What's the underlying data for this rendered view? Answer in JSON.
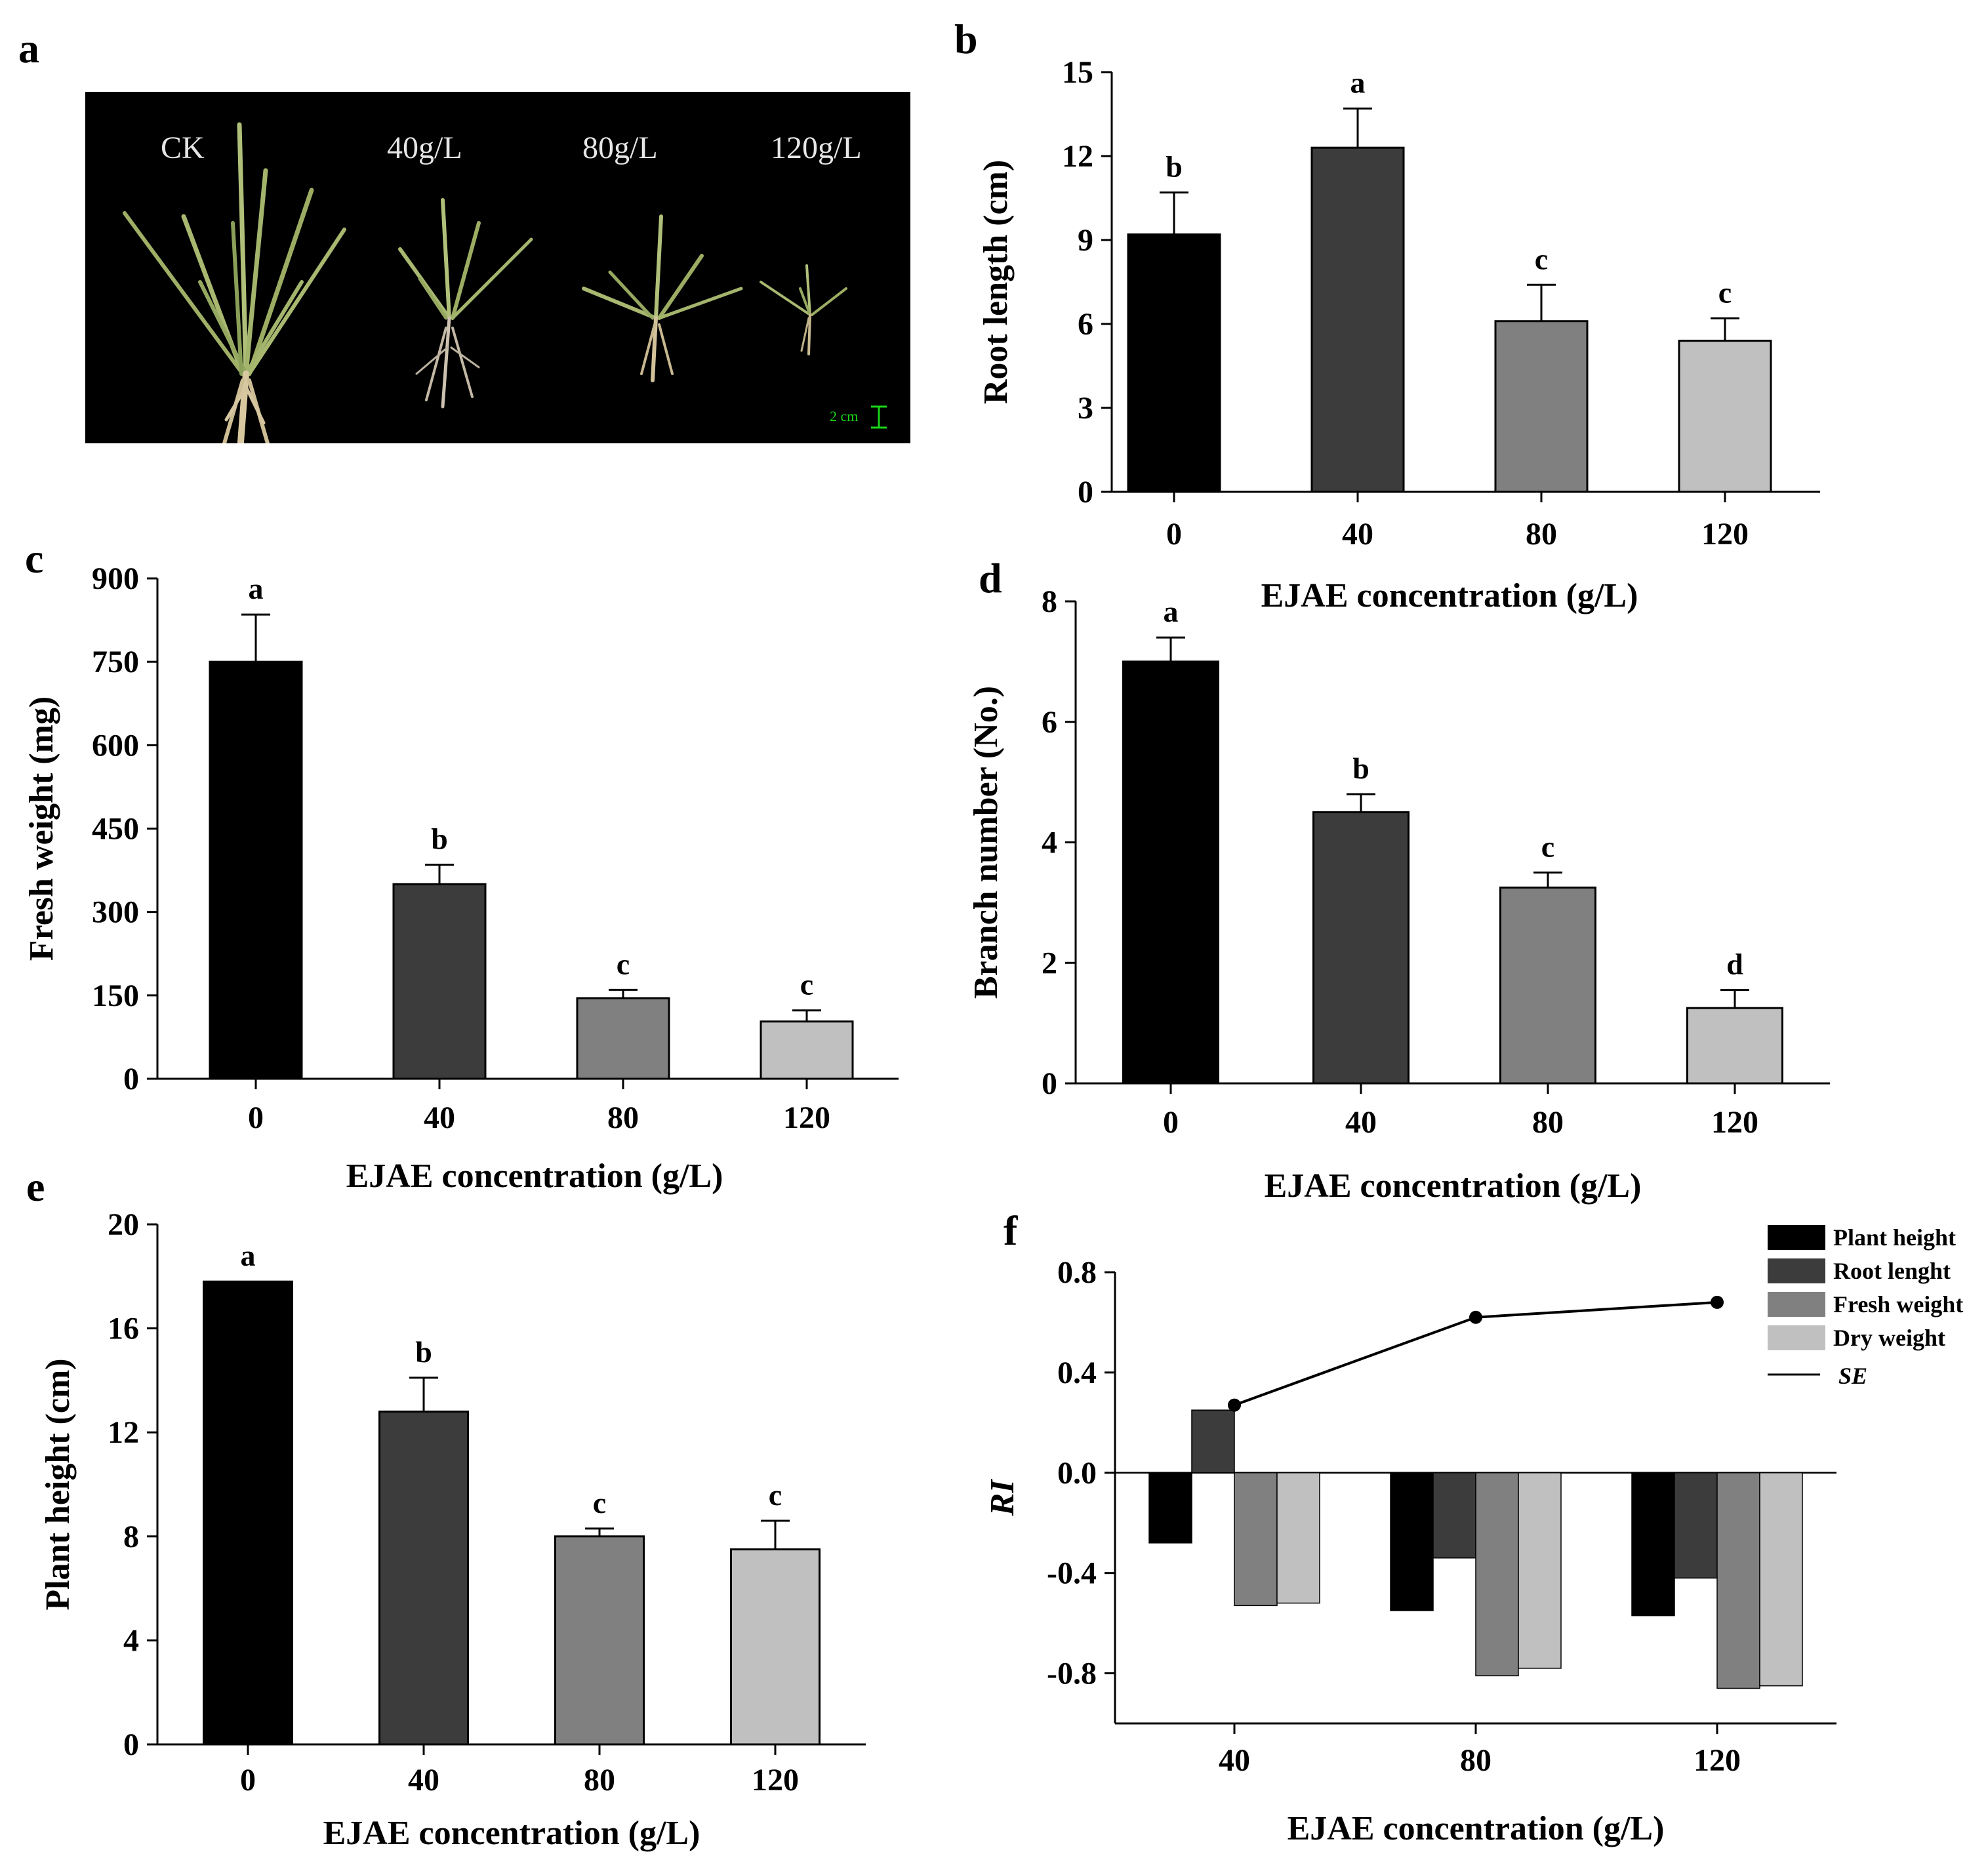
{
  "panels": {
    "a": "a",
    "b": "b",
    "c": "c",
    "d": "d",
    "e": "e",
    "f": "f"
  },
  "photo": {
    "labels": [
      "CK",
      "40g/L",
      "80g/L",
      "120g/L"
    ],
    "scale_label": "2 cm"
  },
  "colors": {
    "c0": "#000000",
    "c40": "#3c3c3c",
    "c80": "#808080",
    "c120": "#c0c0c0",
    "line": "#000000"
  },
  "chart_data": [
    {
      "id": "b",
      "type": "bar",
      "categories": [
        "0",
        "40",
        "80",
        "120"
      ],
      "values": [
        9.2,
        12.3,
        6.1,
        5.4
      ],
      "errors": [
        1.5,
        1.4,
        1.3,
        0.8
      ],
      "significance": [
        "b",
        "a",
        "c",
        "c"
      ],
      "ylabel": "Root length (cm)",
      "xlabel": "EJAE concentration (g/L)",
      "ylim": [
        0,
        15
      ],
      "yticks": [
        "0",
        "3",
        "6",
        "9",
        "12",
        "15"
      ]
    },
    {
      "id": "c",
      "type": "bar",
      "categories": [
        "0",
        "40",
        "80",
        "120"
      ],
      "values": [
        750,
        350,
        145,
        103
      ],
      "errors": [
        85,
        35,
        15,
        20
      ],
      "significance": [
        "a",
        "b",
        "c",
        "c"
      ],
      "ylabel": "Fresh weight (mg)",
      "xlabel": "EJAE concentration (g/L)",
      "ylim": [
        0,
        900
      ],
      "yticks": [
        "0",
        "150",
        "300",
        "450",
        "600",
        "750",
        "900"
      ]
    },
    {
      "id": "d",
      "type": "bar",
      "categories": [
        "0",
        "40",
        "80",
        "120"
      ],
      "values": [
        7.0,
        4.5,
        3.25,
        1.25
      ],
      "errors": [
        0.4,
        0.3,
        0.25,
        0.3
      ],
      "significance": [
        "a",
        "b",
        "c",
        "d"
      ],
      "ylabel": "Branch number (No.)",
      "xlabel": "EJAE concentration (g/L)",
      "ylim": [
        0,
        8
      ],
      "yticks": [
        "0",
        "2",
        "4",
        "6",
        "8"
      ]
    },
    {
      "id": "e",
      "type": "bar",
      "categories": [
        "0",
        "40",
        "80",
        "120"
      ],
      "values": [
        17.8,
        12.8,
        8.0,
        7.5
      ],
      "errors": [
        0,
        1.3,
        0.3,
        1.1
      ],
      "significance": [
        "a",
        "b",
        "c",
        "c"
      ],
      "ylabel": "Plant height (cm)",
      "xlabel": "EJAE concentration (g/L)",
      "ylim": [
        0,
        20
      ],
      "yticks": [
        "0",
        "4",
        "8",
        "12",
        "16",
        "20"
      ]
    },
    {
      "id": "f",
      "type": "bar",
      "categories": [
        "40",
        "80",
        "120"
      ],
      "series": [
        {
          "name": "Plant height",
          "values": [
            -0.28,
            -0.55,
            -0.57
          ]
        },
        {
          "name": "Root lenght",
          "values": [
            0.25,
            -0.34,
            -0.42
          ]
        },
        {
          "name": "Fresh weight",
          "values": [
            -0.53,
            -0.81,
            -0.86
          ]
        },
        {
          "name": "Dry weight",
          "values": [
            -0.52,
            -0.78,
            -0.85
          ]
        }
      ],
      "line": {
        "name": "SE",
        "values": [
          0.27,
          0.62,
          0.68
        ]
      },
      "ylabel": "RI",
      "xlabel": "EJAE concentration (g/L)",
      "ylim": [
        -1.0,
        0.8
      ],
      "yticks": [
        "-0.8",
        "-0.4",
        "0.0",
        "0.4",
        "0.8"
      ],
      "legend_position": "top-right"
    }
  ]
}
